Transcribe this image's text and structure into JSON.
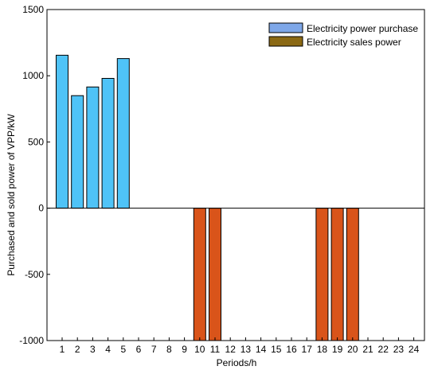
{
  "chart_data": {
    "type": "bar",
    "categories": [
      "1",
      "2",
      "3",
      "4",
      "5",
      "6",
      "7",
      "8",
      "9",
      "10",
      "11",
      "12",
      "13",
      "14",
      "15",
      "16",
      "17",
      "18",
      "19",
      "20",
      "21",
      "22",
      "23",
      "24"
    ],
    "series": [
      {
        "name": "Electricity power purchase",
        "values": [
          1155,
          850,
          915,
          980,
          1130,
          0,
          0,
          0,
          0,
          0,
          0,
          0,
          0,
          0,
          0,
          0,
          0,
          0,
          0,
          0,
          0,
          0,
          0,
          0
        ],
        "color": "#4fc3f7",
        "legend_color": "#7ea7e8"
      },
      {
        "name": "Electricity sales power",
        "values": [
          0,
          0,
          0,
          0,
          0,
          0,
          0,
          0,
          0,
          -1000,
          -1000,
          0,
          0,
          0,
          0,
          0,
          0,
          -1000,
          -1000,
          -1000,
          0,
          0,
          0,
          0
        ],
        "color": "#d9541a",
        "legend_color": "#8b6914"
      }
    ],
    "xlabel": "Periods/h",
    "ylabel": "Purchased and sold power of VPP/kW",
    "ylim": [
      -1000,
      1500
    ],
    "yticks": [
      -1000,
      -500,
      0,
      500,
      1000,
      1500
    ],
    "legend_position": "top-right",
    "grid": false
  }
}
